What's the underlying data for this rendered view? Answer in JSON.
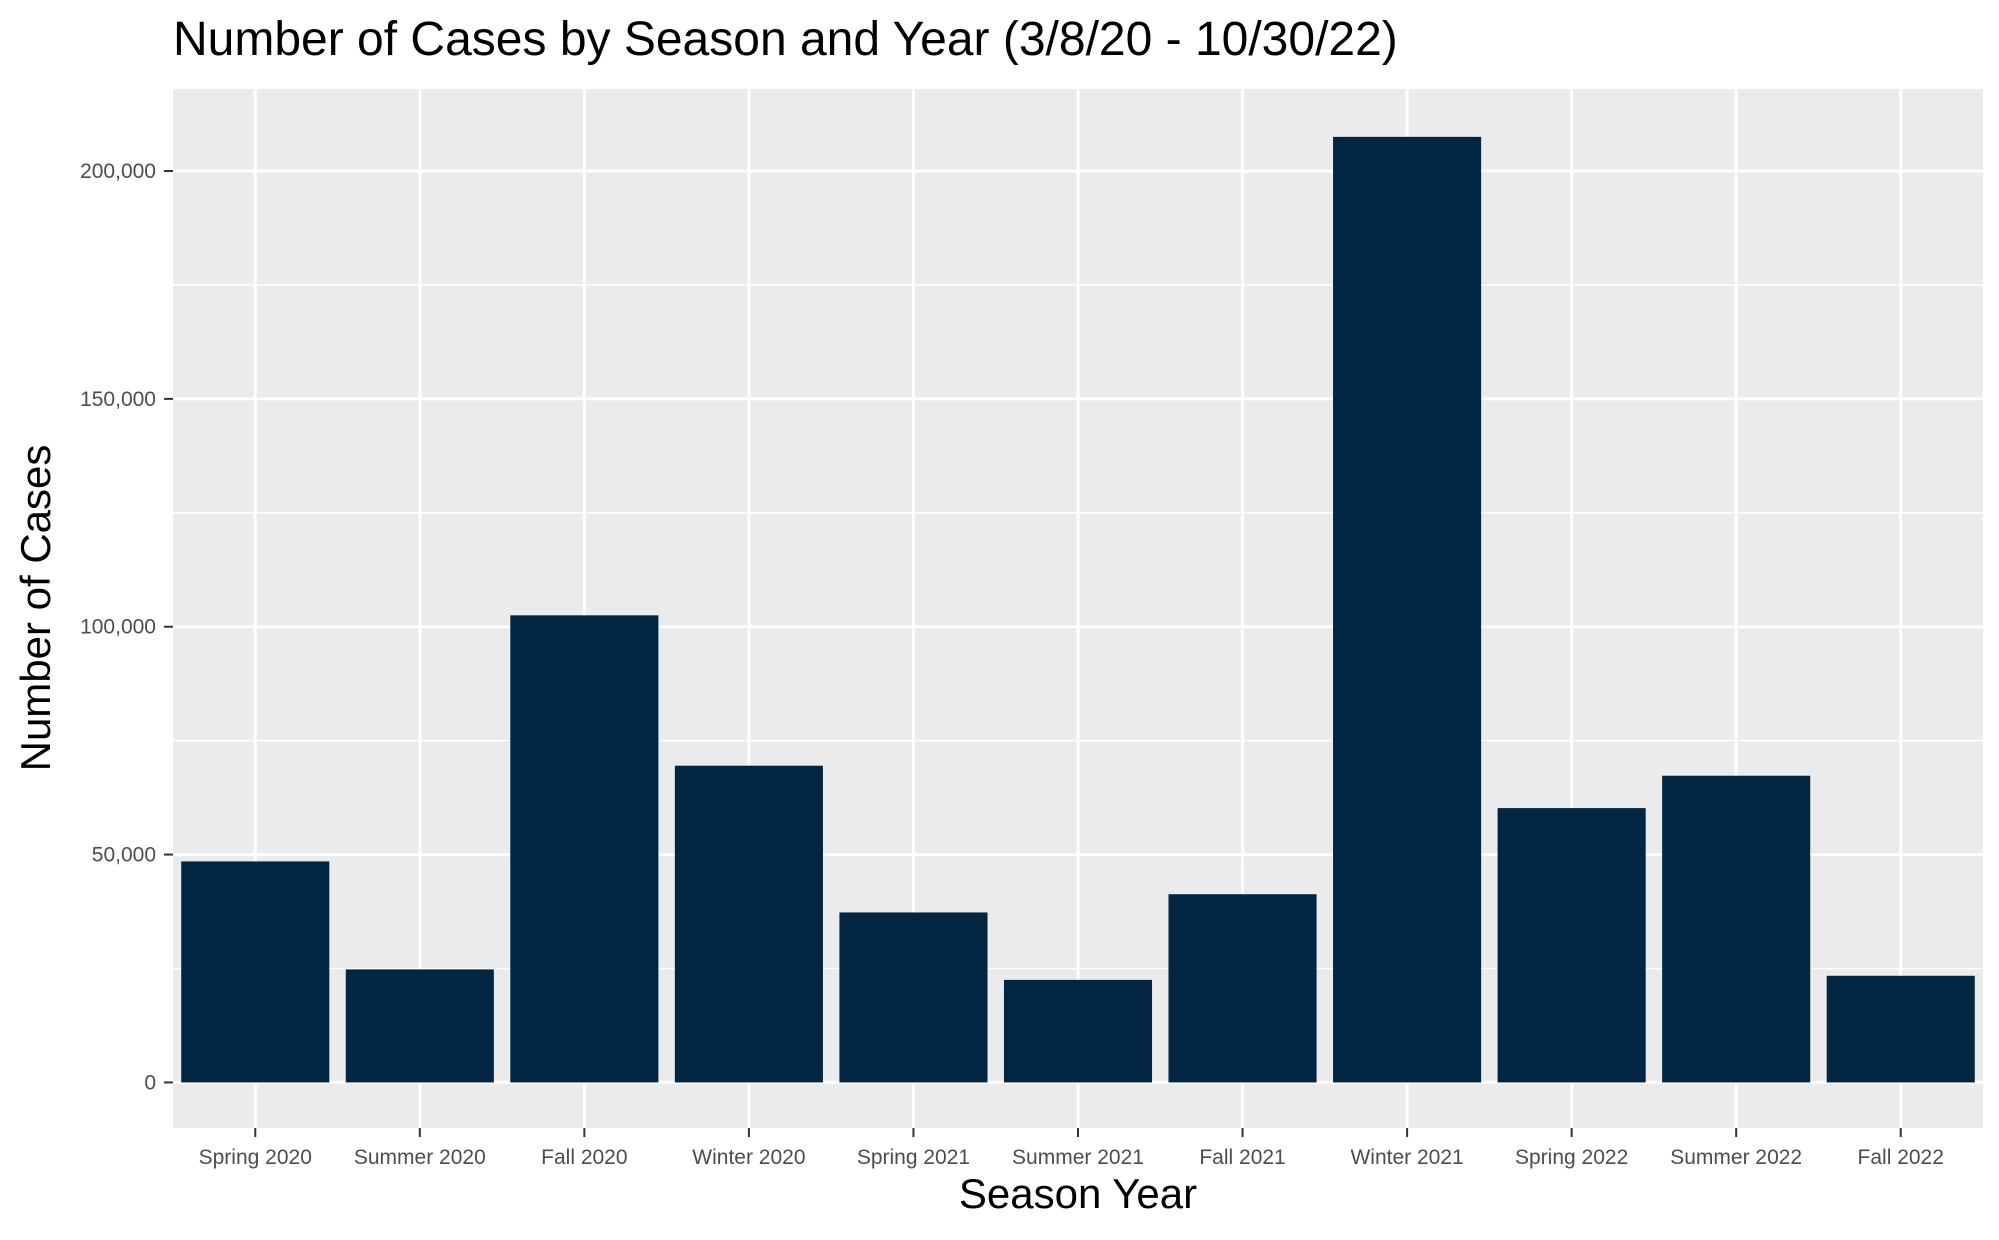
{
  "chart_data": {
    "type": "bar",
    "title": "Number of Cases by Season and Year (3/8/20 - 10/30/22)",
    "xlabel": "Season Year",
    "ylabel": "Number of Cases",
    "categories": [
      "Spring 2020",
      "Summer 2020",
      "Fall 2020",
      "Winter 2020",
      "Spring 2021",
      "Summer 2021",
      "Fall 2021",
      "Winter 2021",
      "Spring 2022",
      "Summer 2022",
      "Fall 2022"
    ],
    "values": [
      48500,
      24800,
      102500,
      69500,
      37300,
      22500,
      41300,
      207500,
      60200,
      67300,
      23400
    ],
    "ylim": [
      -10000,
      218000
    ],
    "yticks": [
      0,
      50000,
      100000,
      150000,
      200000
    ],
    "ytick_labels": [
      "0",
      "50,000",
      "100,000",
      "150,000",
      "200,000"
    ],
    "grid": true,
    "colors": {
      "bar": "#022641",
      "panel_background": "#ebebeb",
      "grid_line": "#ffffff",
      "tick_text": "#4d4d4d",
      "axis_tick": "#333333"
    }
  }
}
